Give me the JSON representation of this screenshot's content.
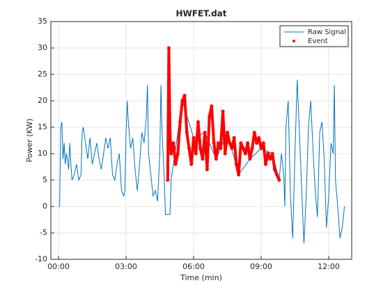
{
  "chart_data": {
    "type": "line",
    "title": "HWFET.dat",
    "x_label": "Time (min)",
    "y_label": "Power (KW)",
    "xlim": [
      -0.34,
      13.02
    ],
    "ylim": [
      -10,
      35
    ],
    "xticks": [
      {
        "value": 0,
        "label": "00:00"
      },
      {
        "value": 3,
        "label": "03:00"
      },
      {
        "value": 6,
        "label": "06:00"
      },
      {
        "value": 9,
        "label": "09:00"
      },
      {
        "value": 12,
        "label": "12:00"
      }
    ],
    "yticks": [
      -10,
      -5,
      0,
      5,
      10,
      15,
      20,
      25,
      30,
      35
    ],
    "grid": true,
    "legend": "top-right",
    "series": [
      {
        "name": "Raw Signal",
        "color": "#0072bd",
        "style": "line",
        "x": [
          0,
          0.05,
          0.1,
          0.15,
          0.2,
          0.25,
          0.3,
          0.35,
          0.4,
          0.45,
          0.5,
          0.55,
          0.6,
          0.7,
          0.8,
          0.9,
          1.0,
          1.05,
          1.1,
          1.2,
          1.3,
          1.4,
          1.5,
          1.6,
          1.7,
          1.8,
          1.9,
          2.0,
          2.1,
          2.2,
          2.3,
          2.4,
          2.5,
          2.6,
          2.7,
          2.8,
          2.9,
          2.95,
          3.0,
          3.05,
          3.1,
          3.2,
          3.3,
          3.4,
          3.5,
          3.6,
          3.7,
          3.8,
          3.9,
          3.95,
          4.0,
          4.1,
          4.2,
          4.3,
          4.4,
          4.5,
          4.55,
          4.6,
          4.7,
          4.75,
          4.8,
          4.95,
          5.0,
          5.5,
          6.0,
          6.5,
          7.0,
          7.5,
          8.0,
          8.5,
          9.0,
          9.5,
          9.8,
          9.9,
          10.0,
          10.05,
          10.1,
          10.2,
          10.3,
          10.4,
          10.5,
          10.6,
          10.7,
          10.8,
          10.9,
          11.0,
          11.1,
          11.2,
          11.3,
          11.4,
          11.5,
          11.6,
          11.7,
          11.8,
          11.9,
          12.0,
          12.1,
          12.2,
          12.25,
          12.3,
          12.4,
          12.5,
          12.6,
          12.7
        ],
        "values": [
          0,
          0,
          15,
          16,
          9,
          12,
          8,
          10,
          9,
          7,
          12,
          8,
          5,
          6,
          8,
          5,
          6,
          14,
          15,
          12,
          9,
          13,
          8,
          10,
          12,
          9,
          7,
          10,
          13,
          11,
          13,
          6,
          5,
          8,
          10,
          3,
          2,
          3,
          14,
          20,
          16,
          11,
          13,
          7,
          3,
          8,
          14,
          12,
          17,
          23,
          10,
          6,
          2,
          3,
          1,
          10,
          23,
          14,
          5,
          -1.5,
          -1.5,
          -1.5,
          5,
          20,
          13,
          14,
          9,
          14,
          6,
          9,
          11,
          10,
          5,
          10,
          6,
          0,
          15,
          20,
          2,
          -6,
          10,
          24,
          14,
          3,
          -7,
          2,
          15,
          20,
          11,
          3,
          -2,
          14,
          16,
          9,
          -4,
          2,
          12,
          10,
          23,
          5,
          0,
          -6,
          -4,
          0
        ]
      },
      {
        "name": "Event",
        "color": "#ff0000",
        "style": "points",
        "x": [
          4.85,
          4.9,
          4.95,
          5.0,
          5.1,
          5.2,
          5.3,
          5.4,
          5.5,
          5.6,
          5.7,
          5.8,
          5.9,
          6.0,
          6.1,
          6.2,
          6.3,
          6.4,
          6.5,
          6.6,
          6.7,
          6.8,
          6.9,
          7.0,
          7.1,
          7.2,
          7.3,
          7.4,
          7.5,
          7.6,
          7.7,
          7.8,
          7.9,
          8.0,
          8.1,
          8.2,
          8.3,
          8.4,
          8.5,
          8.6,
          8.7,
          8.8,
          8.9,
          9.0,
          9.1,
          9.2,
          9.3,
          9.4,
          9.5,
          9.6,
          9.7,
          9.8
        ],
        "values": [
          5,
          30,
          14,
          10,
          12,
          8,
          10,
          16,
          20,
          21,
          14,
          11,
          8,
          13,
          10,
          16,
          11,
          9,
          14,
          7,
          17,
          19,
          12,
          9,
          12,
          11,
          18,
          10,
          14,
          12,
          11,
          13,
          8,
          6,
          12,
          11,
          10,
          12,
          9,
          11,
          14,
          12,
          13,
          11,
          12,
          8,
          10,
          9,
          10,
          7,
          6,
          5
        ]
      }
    ]
  }
}
